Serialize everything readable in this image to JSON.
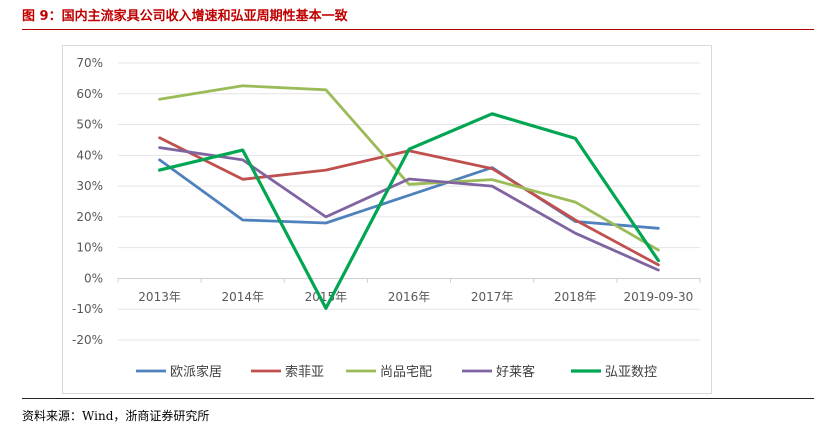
{
  "figure": {
    "title": "图 9：国内主流家具公司收入增速和弘亚周期性基本一致",
    "source": "资料来源：Wind，浙商证券研究所"
  },
  "chart_data": {
    "type": "line",
    "title": "",
    "xlabel": "",
    "ylabel": "",
    "categories": [
      "2013年",
      "2014年",
      "2015年",
      "2016年",
      "2017年",
      "2018年",
      "2019-09-30"
    ],
    "ylim": [
      -0.2,
      0.7
    ],
    "yticks": [
      0.7,
      0.6,
      0.5,
      0.4,
      0.3,
      0.2,
      0.1,
      0.0,
      -0.1,
      -0.2
    ],
    "ytick_labels": [
      "70%",
      "60%",
      "50%",
      "40%",
      "30%",
      "20%",
      "10%",
      "0%",
      "-10%",
      "-20%"
    ],
    "grid": true,
    "legend_position": "bottom",
    "series": [
      {
        "name": "欧派家居",
        "color": "#4f81bd",
        "values": [
          0.385,
          0.19,
          0.18,
          0.27,
          0.36,
          0.185,
          0.163
        ]
      },
      {
        "name": "索菲亚",
        "color": "#c0504d",
        "values": [
          0.457,
          0.322,
          0.352,
          0.415,
          0.357,
          0.19,
          0.044
        ]
      },
      {
        "name": "尚品宅配",
        "color": "#9bbb59",
        "values": [
          0.582,
          0.626,
          0.613,
          0.306,
          0.321,
          0.248,
          0.092
        ]
      },
      {
        "name": "好莱客",
        "color": "#8064a2",
        "values": [
          0.425,
          0.385,
          0.2,
          0.323,
          0.3,
          0.147,
          0.027
        ]
      },
      {
        "name": "弘亚数控",
        "color": "#00a651",
        "values": [
          0.352,
          0.417,
          -0.097,
          0.42,
          0.535,
          0.455,
          0.058
        ]
      }
    ]
  }
}
